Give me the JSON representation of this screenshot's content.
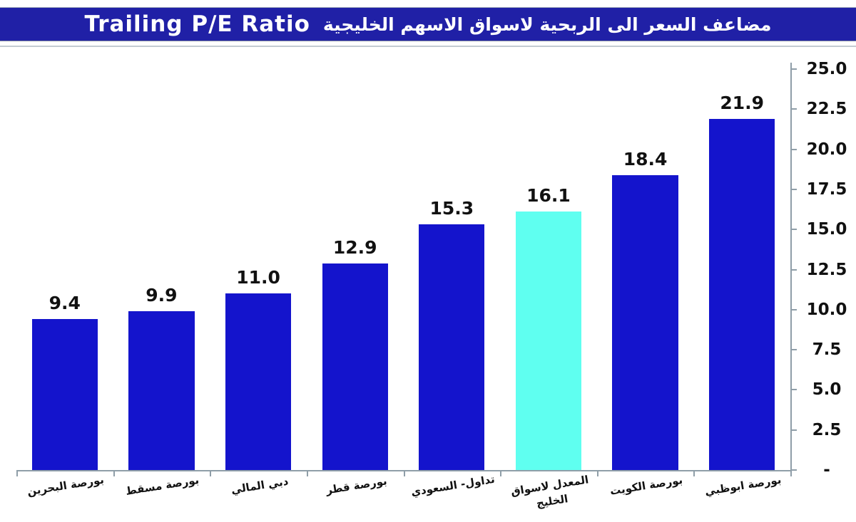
{
  "chart_data": {
    "type": "bar",
    "title": "Trailing P/E Ratio",
    "title_arabic": "مضاعف السعر الى الربحية لاسواق الاسهم الخليجية",
    "categories": [
      "بورصة البحرين",
      "بورصة مسقط",
      "دبي المالي",
      "بورصة قطر",
      "تداول- السعودي",
      "المعدل لاسواق\nالخليج",
      "بورصة الكويت",
      "بورصة ابوظبي"
    ],
    "values": [
      9.4,
      9.9,
      11.0,
      12.9,
      15.3,
      16.1,
      18.4,
      21.9
    ],
    "value_labels": [
      "9.4",
      "9.9",
      "11.0",
      "12.9",
      "15.3",
      "16.1",
      "18.4",
      "21.9"
    ],
    "highlight_index": 5,
    "ylim": [
      0,
      25
    ],
    "ytick_values": [
      25,
      22.5,
      20,
      17.5,
      15,
      12.5,
      10,
      7.5,
      5,
      2.5,
      0
    ],
    "ytick_labels": [
      "25.0",
      "22.5",
      "20.0",
      "17.5",
      "15.0",
      "12.5",
      "10.0",
      "7.5",
      "5.0",
      "2.5",
      "-"
    ],
    "axis_side": "right",
    "grid": false,
    "legend": "none",
    "xlabel": "",
    "ylabel": ""
  },
  "colors": {
    "title_bar_bg": "#2020A6",
    "title_text": "#FFFFFF",
    "bar_blue": "#1414CC",
    "highlight_cyan": "#5FFFF0",
    "axis_line": "#8F9EA8",
    "label_text": "#111111",
    "background": "#FFFFFF"
  }
}
